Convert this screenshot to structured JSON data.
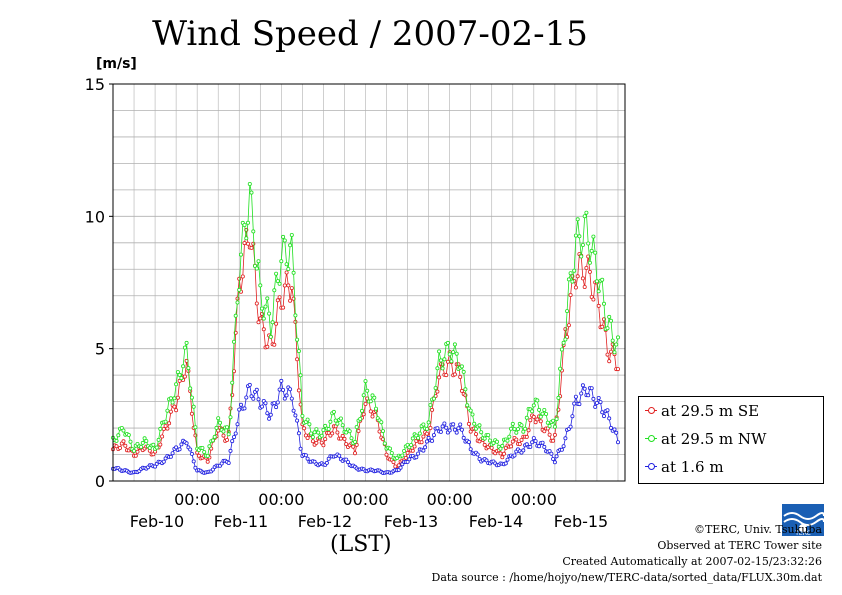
{
  "title": "Wind Speed / 2007-02-15",
  "chart_data": {
    "type": "line",
    "title": "Wind Speed / 2007-02-15",
    "ylabel": "[m/s]",
    "xlabel": "(LST)",
    "ylim": [
      0,
      15
    ],
    "yticks": [
      "0",
      "5",
      "10",
      "15"
    ],
    "xtime_labels": [
      "00:00",
      "00:00",
      "00:00",
      "00:00",
      "00:00"
    ],
    "day_labels": [
      "Feb-10",
      "Feb-11",
      "Feb-12",
      "Feb-13",
      "Feb-14",
      "Feb-15"
    ],
    "grid": true,
    "legend_position": "right",
    "x_hours_from_start": [
      0,
      3,
      6,
      9,
      12,
      15,
      18,
      21,
      24,
      27,
      30,
      33,
      36,
      39,
      42,
      45,
      48,
      51,
      54,
      57,
      60,
      63,
      66,
      69,
      72,
      75,
      78,
      81,
      84,
      87,
      90,
      93,
      96,
      99,
      102,
      105,
      108,
      111,
      114,
      117,
      120,
      123,
      126,
      129,
      132,
      135,
      138,
      141,
      144
    ],
    "series": [
      {
        "name": "at 29.5 m SE",
        "color": "#e02020",
        "values": [
          1.2,
          1.4,
          1.0,
          1.3,
          1.0,
          2.0,
          3.0,
          4.5,
          1.0,
          0.8,
          2.0,
          1.5,
          7.5,
          9.5,
          6.0,
          5.0,
          7.0,
          7.5,
          2.0,
          1.5,
          1.5,
          2.0,
          1.5,
          1.2,
          3.0,
          2.5,
          1.0,
          0.5,
          1.0,
          1.5,
          1.8,
          4.0,
          4.5,
          4.0,
          2.0,
          1.5,
          1.2,
          1.0,
          1.5,
          1.5,
          2.5,
          2.0,
          1.5,
          5.5,
          8.0,
          8.0,
          7.0,
          5.0,
          4.5
        ]
      },
      {
        "name": "at 29.5 m NW",
        "color": "#20e020",
        "values": [
          1.5,
          2.0,
          1.2,
          1.5,
          1.2,
          2.5,
          3.5,
          5.0,
          1.3,
          1.0,
          2.2,
          1.8,
          8.0,
          10.8,
          7.0,
          6.0,
          8.5,
          8.8,
          2.5,
          1.8,
          1.8,
          2.5,
          2.0,
          1.5,
          3.5,
          2.8,
          1.3,
          0.8,
          1.3,
          1.8,
          2.2,
          4.5,
          5.0,
          4.5,
          2.5,
          1.8,
          1.5,
          1.3,
          2.0,
          2.0,
          3.0,
          2.5,
          2.0,
          6.0,
          9.0,
          9.5,
          8.0,
          6.0,
          5.0
        ]
      },
      {
        "name": "at 1.6 m",
        "color": "#2020e0",
        "values": [
          0.5,
          0.4,
          0.3,
          0.5,
          0.6,
          0.8,
          1.2,
          1.5,
          0.4,
          0.3,
          0.6,
          0.8,
          2.5,
          3.5,
          3.0,
          2.5,
          3.5,
          3.2,
          1.0,
          0.7,
          0.6,
          1.0,
          0.8,
          0.5,
          0.4,
          0.4,
          0.3,
          0.4,
          0.8,
          1.0,
          1.5,
          2.0,
          2.0,
          2.0,
          1.2,
          0.8,
          0.7,
          0.6,
          1.0,
          1.2,
          1.5,
          1.3,
          0.8,
          1.5,
          3.0,
          3.5,
          3.0,
          2.5,
          1.5
        ]
      }
    ]
  },
  "credits": {
    "line1": "©TERC, Univ. Tsukuba",
    "line2": "Observed at TERC Tower site",
    "line3": "Created Automatically at 2007-02-15/23:32:26",
    "line4": "Data source : /home/hojyo/new/TERC-data/sorted_data/FLUX.30m.dat"
  },
  "logo_text": "TERC",
  "colors": {
    "se": "#e02020",
    "nw": "#20e020",
    "low": "#2020e0",
    "grid": "#b0b0b0"
  }
}
